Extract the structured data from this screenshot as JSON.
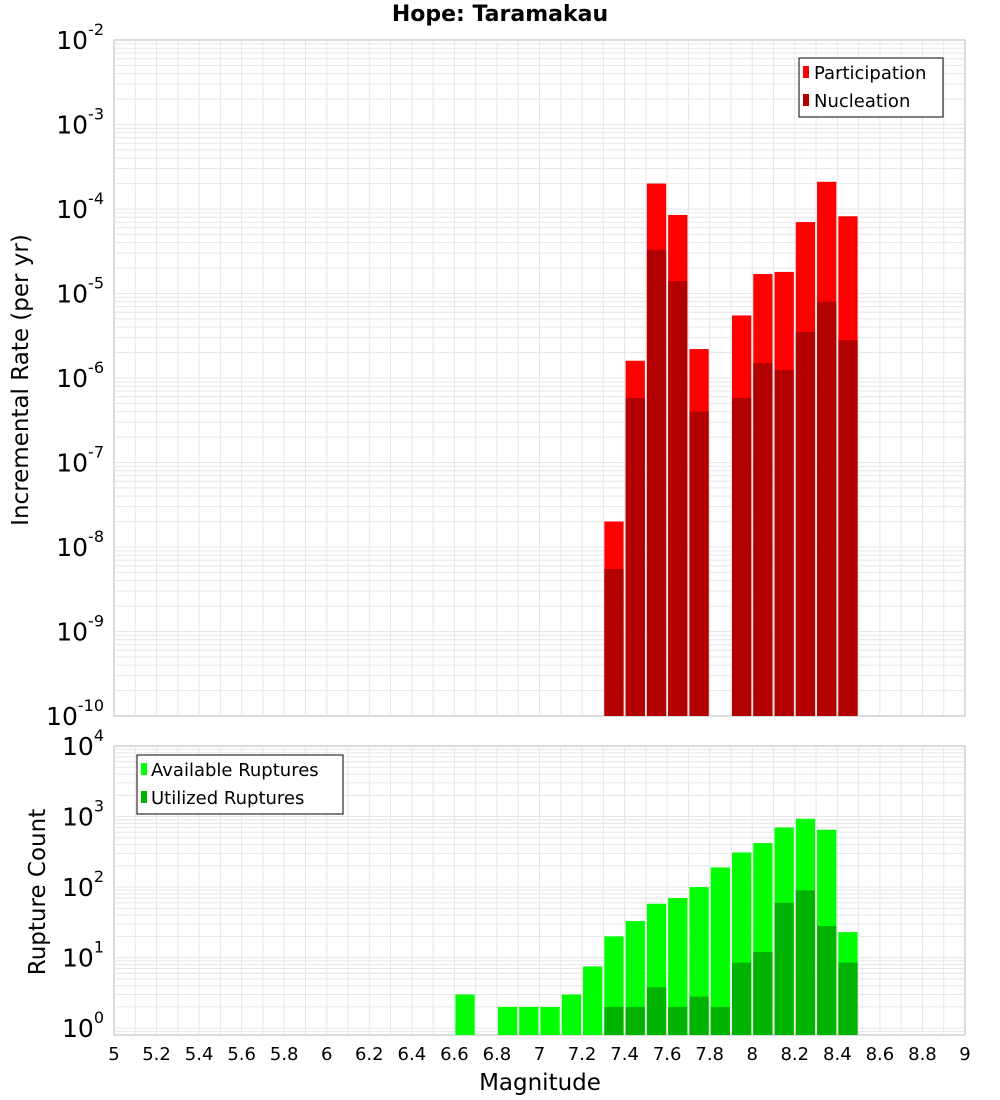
{
  "title": "Hope: Taramakau",
  "colors": {
    "participation": "#ff0000",
    "nucleation": "#b30000",
    "available": "#00ff00",
    "utilized": "#00b300",
    "grid": "#e6e6e6",
    "frame": "#b8b8b8"
  },
  "chart_data": [
    {
      "type": "bar",
      "title": "Hope: Taramakau",
      "ylabel": "Incremental Rate (per yr)",
      "xlim": [
        5,
        9
      ],
      "ylim": [
        1e-10,
        0.01
      ],
      "yscale": "log",
      "yticks": [
        {
          "base": "10",
          "exp": "-2"
        },
        {
          "base": "10",
          "exp": "-3"
        },
        {
          "base": "10",
          "exp": "-4"
        },
        {
          "base": "10",
          "exp": "-5"
        },
        {
          "base": "10",
          "exp": "-6"
        },
        {
          "base": "10",
          "exp": "-7"
        },
        {
          "base": "10",
          "exp": "-8"
        },
        {
          "base": "10",
          "exp": "-9"
        },
        {
          "base": "10",
          "exp": "-10"
        }
      ],
      "grid": true,
      "legend_position": "top-right",
      "series": [
        {
          "name": "Participation",
          "color": "#ff0000",
          "points": [
            [
              7.35,
              2e-08
            ],
            [
              7.45,
              1.6e-06
            ],
            [
              7.55,
              0.0002
            ],
            [
              7.65,
              8.5e-05
            ],
            [
              7.75,
              2.2e-06
            ],
            [
              7.95,
              5.5e-06
            ],
            [
              8.05,
              1.7e-05
            ],
            [
              8.15,
              1.8e-05
            ],
            [
              8.25,
              7e-05
            ],
            [
              8.35,
              0.00021
            ],
            [
              8.45,
              8.2e-05
            ]
          ]
        },
        {
          "name": "Nucleation",
          "color": "#b30000",
          "points": [
            [
              7.35,
              5.5e-09
            ],
            [
              7.45,
              5.8e-07
            ],
            [
              7.55,
              3.3e-05
            ],
            [
              7.65,
              1.4e-05
            ],
            [
              7.75,
              4e-07
            ],
            [
              7.95,
              5.8e-07
            ],
            [
              8.05,
              1.5e-06
            ],
            [
              8.15,
              1.25e-06
            ],
            [
              8.25,
              3.5e-06
            ],
            [
              8.35,
              8e-06
            ],
            [
              8.45,
              2.8e-06
            ]
          ]
        }
      ]
    },
    {
      "type": "bar",
      "ylabel": "Rupture Count",
      "xlabel": "Magnitude",
      "xlim": [
        5,
        9
      ],
      "ylim": [
        0.8,
        10000
      ],
      "yscale": "log",
      "yticks": [
        {
          "base": "10",
          "exp": "4"
        },
        {
          "base": "10",
          "exp": "3"
        },
        {
          "base": "10",
          "exp": "2"
        },
        {
          "base": "10",
          "exp": "1"
        },
        {
          "base": "10",
          "exp": "0"
        }
      ],
      "xticks": [
        "5",
        "5.2",
        "5.4",
        "5.6",
        "5.8",
        "6",
        "6.2",
        "6.4",
        "6.6",
        "6.8",
        "7",
        "7.2",
        "7.4",
        "7.6",
        "7.8",
        "8",
        "8.2",
        "8.4",
        "8.6",
        "8.8",
        "9"
      ],
      "grid": true,
      "legend_position": "top-left",
      "series": [
        {
          "name": "Available Ruptures",
          "color": "#00ff00",
          "points": [
            [
              6.65,
              3
            ],
            [
              6.85,
              2
            ],
            [
              6.95,
              2
            ],
            [
              7.05,
              2
            ],
            [
              7.15,
              3
            ],
            [
              7.25,
              7.5
            ],
            [
              7.35,
              20
            ],
            [
              7.45,
              33
            ],
            [
              7.55,
              58
            ],
            [
              7.65,
              70
            ],
            [
              7.75,
              100
            ],
            [
              7.85,
              190
            ],
            [
              7.95,
              310
            ],
            [
              8.05,
              420
            ],
            [
              8.15,
              700
            ],
            [
              8.25,
              930
            ],
            [
              8.35,
              650
            ],
            [
              8.45,
              23
            ]
          ]
        },
        {
          "name": "Utilized Ruptures",
          "color": "#00b300",
          "points": [
            [
              7.35,
              2
            ],
            [
              7.45,
              2
            ],
            [
              7.55,
              3.8
            ],
            [
              7.65,
              2
            ],
            [
              7.75,
              2.8
            ],
            [
              7.85,
              2
            ],
            [
              7.95,
              8.5
            ],
            [
              8.05,
              12
            ],
            [
              8.15,
              60
            ],
            [
              8.25,
              90
            ],
            [
              8.35,
              28
            ],
            [
              8.45,
              8.5
            ]
          ]
        }
      ]
    }
  ]
}
